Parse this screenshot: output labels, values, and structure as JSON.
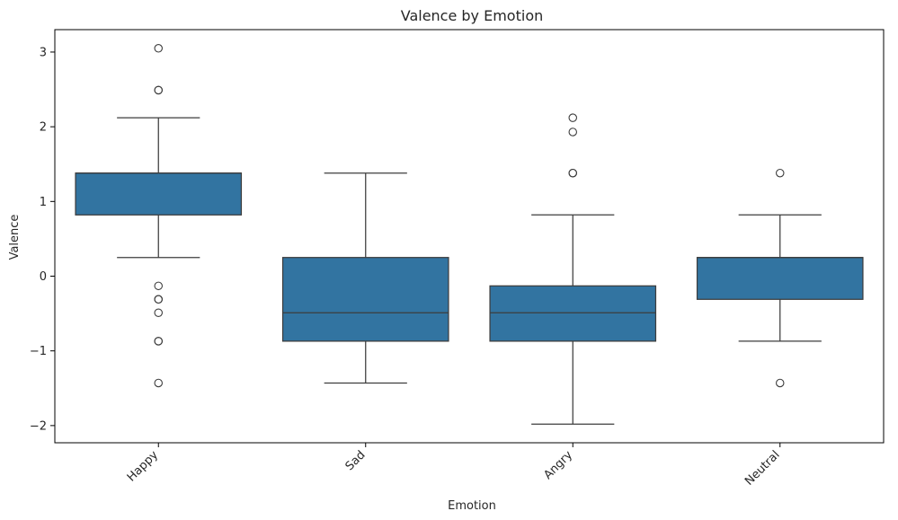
{
  "chart_data": {
    "type": "box",
    "title": "Valence by Emotion",
    "xlabel": "Emotion",
    "ylabel": "Valence",
    "ylim": [
      -2.23,
      3.3
    ],
    "yticks": [
      -2,
      -1,
      0,
      1,
      2,
      3
    ],
    "ytick_labels": [
      "−2",
      "−1",
      "0",
      "1",
      "2",
      "3"
    ],
    "categories": [
      "Happy",
      "Sad",
      "Angry",
      "Neutral"
    ],
    "box_color": "#3274a1",
    "line_color": "#3d3d3d",
    "boxes": [
      {
        "category": "Happy",
        "whisker_low": 0.25,
        "q1": 0.82,
        "median": 1.38,
        "q3": 1.38,
        "whisker_high": 2.12,
        "outliers": [
          3.05,
          2.49,
          2.49,
          -0.13,
          -0.31,
          -0.31,
          -0.49,
          -0.87,
          -0.87,
          -1.43
        ]
      },
      {
        "category": "Sad",
        "whisker_low": -1.43,
        "q1": -0.87,
        "median": -0.49,
        "q3": 0.25,
        "whisker_high": 1.38,
        "outliers": []
      },
      {
        "category": "Angry",
        "whisker_low": -1.98,
        "q1": -0.87,
        "median": -0.49,
        "q3": -0.13,
        "whisker_high": 0.82,
        "outliers": [
          2.12,
          1.93,
          1.38,
          1.38
        ]
      },
      {
        "category": "Neutral",
        "whisker_low": -0.87,
        "q1": -0.31,
        "median": 0.25,
        "q3": 0.25,
        "whisker_high": 0.82,
        "outliers": [
          1.38,
          -1.43
        ]
      }
    ]
  }
}
